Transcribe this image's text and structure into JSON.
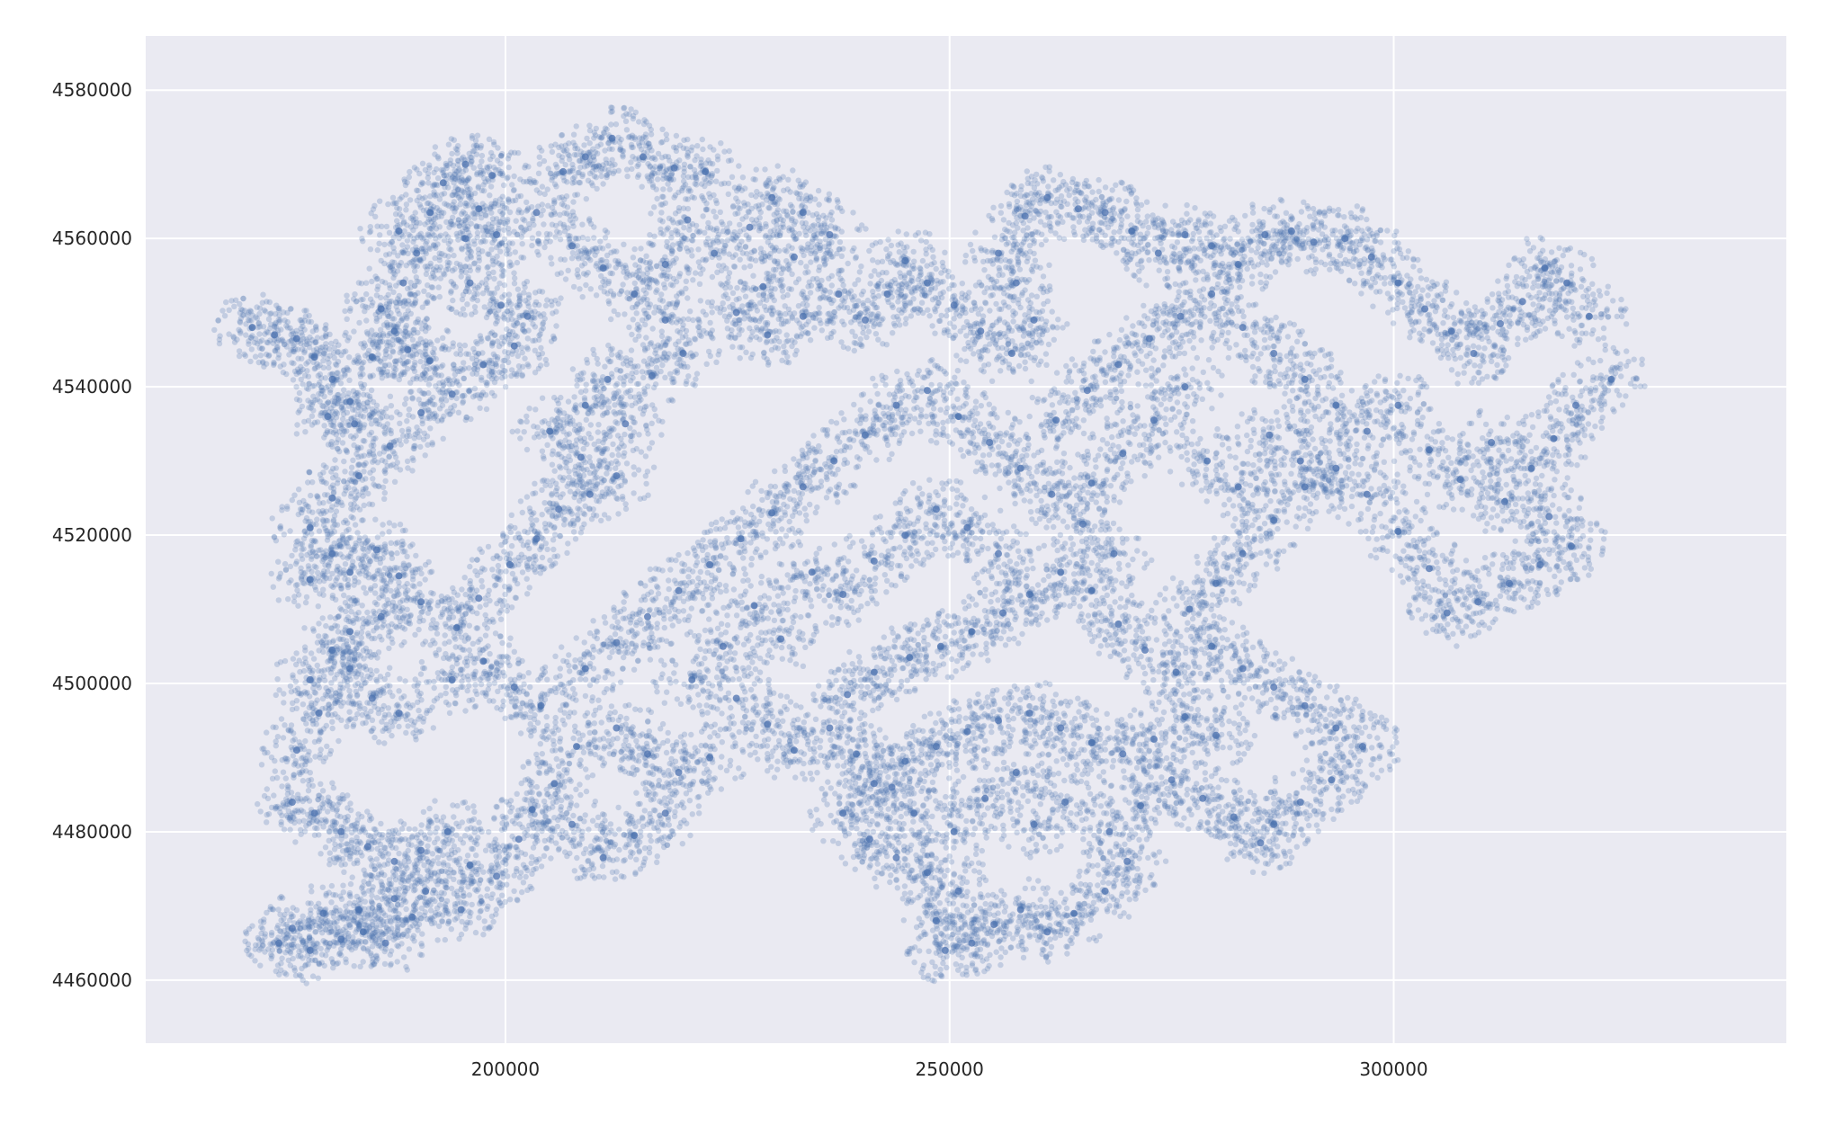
{
  "chart_data": {
    "type": "scatter",
    "title": "",
    "xlabel": "",
    "ylabel": "",
    "xlim": [
      159500,
      344200
    ],
    "ylim": [
      4451500,
      4587300
    ],
    "xticks": [
      200000,
      250000,
      300000
    ],
    "yticks": [
      4460000,
      4480000,
      4500000,
      4520000,
      4540000,
      4560000,
      4580000
    ],
    "x_tick_labels": [
      "200000",
      "250000",
      "300000"
    ],
    "y_tick_labels": [
      "4460000",
      "4480000",
      "4500000",
      "4520000",
      "4540000",
      "4560000",
      "4580000"
    ],
    "grid": true,
    "colors": {
      "background": "#eaeaf2",
      "grid": "#ffffff",
      "marker": "#4c72b0"
    },
    "marker_alpha": 0.25,
    "series": [
      {
        "points": [
          [
            171500,
            4548000
          ],
          [
            174000,
            4547000
          ],
          [
            176500,
            4546500
          ],
          [
            178500,
            4544000
          ],
          [
            180500,
            4541000
          ],
          [
            182500,
            4538000
          ],
          [
            180000,
            4536000
          ],
          [
            183000,
            4535000
          ],
          [
            185000,
            4544000
          ],
          [
            187500,
            4547500
          ],
          [
            189000,
            4545000
          ],
          [
            191500,
            4543500
          ],
          [
            186000,
            4550500
          ],
          [
            188500,
            4554000
          ],
          [
            190000,
            4558000
          ],
          [
            188000,
            4561000
          ],
          [
            191500,
            4563500
          ],
          [
            193000,
            4567500
          ],
          [
            195500,
            4570000
          ],
          [
            198500,
            4568500
          ],
          [
            197000,
            4564000
          ],
          [
            195500,
            4560000
          ],
          [
            199000,
            4560500
          ],
          [
            196000,
            4554000
          ],
          [
            199500,
            4551000
          ],
          [
            202500,
            4549500
          ],
          [
            201000,
            4545500
          ],
          [
            197500,
            4543000
          ],
          [
            194000,
            4539000
          ],
          [
            190500,
            4536500
          ],
          [
            187000,
            4532000
          ],
          [
            183500,
            4528000
          ],
          [
            180500,
            4525000
          ],
          [
            178000,
            4521000
          ],
          [
            180500,
            4517500
          ],
          [
            178000,
            4514000
          ],
          [
            182500,
            4515000
          ],
          [
            185500,
            4518000
          ],
          [
            188000,
            4514500
          ],
          [
            190500,
            4511000
          ],
          [
            186000,
            4509000
          ],
          [
            182500,
            4507000
          ],
          [
            180500,
            4504500
          ],
          [
            178000,
            4500500
          ],
          [
            182500,
            4502000
          ],
          [
            185000,
            4498000
          ],
          [
            188000,
            4496000
          ],
          [
            179000,
            4496000
          ],
          [
            176500,
            4491000
          ],
          [
            176000,
            4484000
          ],
          [
            178500,
            4482500
          ],
          [
            181500,
            4480000
          ],
          [
            184500,
            4478000
          ],
          [
            187500,
            4476000
          ],
          [
            190500,
            4477500
          ],
          [
            193500,
            4480000
          ],
          [
            196000,
            4475500
          ],
          [
            191000,
            4472000
          ],
          [
            187500,
            4471000
          ],
          [
            183500,
            4469500
          ],
          [
            179500,
            4469000
          ],
          [
            176000,
            4467000
          ],
          [
            174500,
            4465000
          ],
          [
            178000,
            4464000
          ],
          [
            181500,
            4465500
          ],
          [
            184000,
            4466500
          ],
          [
            186500,
            4465000
          ],
          [
            189500,
            4468500
          ],
          [
            195000,
            4469500
          ],
          [
            199000,
            4474000
          ],
          [
            201500,
            4479000
          ],
          [
            203000,
            4483000
          ],
          [
            205500,
            4486500
          ],
          [
            208000,
            4491500
          ],
          [
            204000,
            4497000
          ],
          [
            201000,
            4499500
          ],
          [
            197500,
            4503000
          ],
          [
            194000,
            4500500
          ],
          [
            194500,
            4507500
          ],
          [
            197000,
            4511500
          ],
          [
            200500,
            4516000
          ],
          [
            203500,
            4519500
          ],
          [
            206000,
            4523500
          ],
          [
            209500,
            4525500
          ],
          [
            212500,
            4528000
          ],
          [
            208500,
            4530500
          ],
          [
            205000,
            4534000
          ],
          [
            209000,
            4537500
          ],
          [
            211500,
            4541000
          ],
          [
            213500,
            4535000
          ],
          [
            216500,
            4541500
          ],
          [
            220000,
            4544500
          ],
          [
            218000,
            4549000
          ],
          [
            214500,
            4552500
          ],
          [
            211000,
            4556000
          ],
          [
            207500,
            4559000
          ],
          [
            203500,
            4563500
          ],
          [
            206500,
            4569000
          ],
          [
            209000,
            4571000
          ],
          [
            212000,
            4573500
          ],
          [
            215500,
            4571000
          ],
          [
            219000,
            4569500
          ],
          [
            222500,
            4569000
          ],
          [
            220500,
            4562500
          ],
          [
            218000,
            4556500
          ],
          [
            223500,
            4558000
          ],
          [
            227500,
            4561500
          ],
          [
            230000,
            4565500
          ],
          [
            233500,
            4563500
          ],
          [
            236500,
            4560500
          ],
          [
            232500,
            4557500
          ],
          [
            229000,
            4553500
          ],
          [
            226000,
            4550000
          ],
          [
            229500,
            4547000
          ],
          [
            233500,
            4549500
          ],
          [
            237500,
            4552500
          ],
          [
            240500,
            4549000
          ],
          [
            243000,
            4552500
          ],
          [
            245000,
            4557000
          ],
          [
            247500,
            4554000
          ],
          [
            250500,
            4551000
          ],
          [
            253500,
            4547500
          ],
          [
            257000,
            4544500
          ],
          [
            259500,
            4549000
          ],
          [
            257500,
            4554000
          ],
          [
            255500,
            4558000
          ],
          [
            258500,
            4563000
          ],
          [
            261000,
            4565500
          ],
          [
            264500,
            4564000
          ],
          [
            267500,
            4563500
          ],
          [
            270500,
            4561000
          ],
          [
            273500,
            4558000
          ],
          [
            276500,
            4560500
          ],
          [
            279500,
            4559000
          ],
          [
            282500,
            4556500
          ],
          [
            285500,
            4560500
          ],
          [
            288500,
            4561000
          ],
          [
            291000,
            4559500
          ],
          [
            294500,
            4560000
          ],
          [
            297500,
            4557500
          ],
          [
            300500,
            4554000
          ],
          [
            303500,
            4550500
          ],
          [
            306500,
            4547500
          ],
          [
            309000,
            4544500
          ],
          [
            312000,
            4548500
          ],
          [
            314500,
            4551500
          ],
          [
            317000,
            4556000
          ],
          [
            319500,
            4554000
          ],
          [
            322000,
            4549500
          ],
          [
            324500,
            4541000
          ],
          [
            320500,
            4537500
          ],
          [
            318000,
            4533000
          ],
          [
            315500,
            4529000
          ],
          [
            312500,
            4524500
          ],
          [
            317500,
            4522500
          ],
          [
            320000,
            4518500
          ],
          [
            316500,
            4516000
          ],
          [
            313000,
            4513500
          ],
          [
            309500,
            4511000
          ],
          [
            306000,
            4509500
          ],
          [
            304000,
            4515500
          ],
          [
            300500,
            4520500
          ],
          [
            297000,
            4525500
          ],
          [
            293500,
            4529000
          ],
          [
            290000,
            4526500
          ],
          [
            286500,
            4522000
          ],
          [
            283000,
            4517500
          ],
          [
            280000,
            4513500
          ],
          [
            277000,
            4510000
          ],
          [
            279500,
            4505000
          ],
          [
            283000,
            4502000
          ],
          [
            286500,
            4499500
          ],
          [
            290000,
            4497000
          ],
          [
            293500,
            4494000
          ],
          [
            296500,
            4491500
          ],
          [
            293000,
            4487000
          ],
          [
            289500,
            4484000
          ],
          [
            286500,
            4481000
          ],
          [
            285000,
            4478500
          ],
          [
            282000,
            4482000
          ],
          [
            278500,
            4484500
          ],
          [
            275000,
            4487000
          ],
          [
            271500,
            4483500
          ],
          [
            268000,
            4480000
          ],
          [
            270000,
            4476000
          ],
          [
            267500,
            4472000
          ],
          [
            264000,
            4469000
          ],
          [
            261000,
            4466500
          ],
          [
            258000,
            4469500
          ],
          [
            255000,
            4467500
          ],
          [
            252500,
            4465000
          ],
          [
            249500,
            4464000
          ],
          [
            248500,
            4468000
          ],
          [
            251000,
            4472000
          ],
          [
            247500,
            4474500
          ],
          [
            244000,
            4476500
          ],
          [
            241000,
            4479000
          ],
          [
            238000,
            4482500
          ],
          [
            241500,
            4486500
          ],
          [
            245000,
            4489500
          ],
          [
            248500,
            4491500
          ],
          [
            252000,
            4493500
          ],
          [
            255500,
            4495000
          ],
          [
            259000,
            4496000
          ],
          [
            262500,
            4494000
          ],
          [
            266000,
            4492000
          ],
          [
            269500,
            4490500
          ],
          [
            273000,
            4492500
          ],
          [
            276500,
            4495500
          ],
          [
            280000,
            4493000
          ],
          [
            257500,
            4488000
          ],
          [
            254000,
            4484500
          ],
          [
            259500,
            4481000
          ],
          [
            263000,
            4484000
          ],
          [
            250500,
            4480000
          ],
          [
            246000,
            4482500
          ],
          [
            243500,
            4486000
          ],
          [
            239500,
            4490500
          ],
          [
            236500,
            4494000
          ],
          [
            238500,
            4498500
          ],
          [
            241500,
            4501500
          ],
          [
            245500,
            4503500
          ],
          [
            249000,
            4505000
          ],
          [
            252500,
            4507000
          ],
          [
            256000,
            4509500
          ],
          [
            259000,
            4512000
          ],
          [
            262500,
            4515000
          ],
          [
            266000,
            4512500
          ],
          [
            269000,
            4508000
          ],
          [
            272000,
            4504500
          ],
          [
            275500,
            4501500
          ],
          [
            268500,
            4517500
          ],
          [
            265000,
            4521500
          ],
          [
            261500,
            4525500
          ],
          [
            258000,
            4529000
          ],
          [
            254500,
            4532500
          ],
          [
            251000,
            4536000
          ],
          [
            247500,
            4539500
          ],
          [
            244000,
            4537500
          ],
          [
            240500,
            4533500
          ],
          [
            237000,
            4530000
          ],
          [
            233500,
            4526500
          ],
          [
            230000,
            4523000
          ],
          [
            226500,
            4519500
          ],
          [
            223000,
            4516000
          ],
          [
            219500,
            4512500
          ],
          [
            216000,
            4509000
          ],
          [
            212500,
            4505500
          ],
          [
            209000,
            4502000
          ],
          [
            226000,
            4498000
          ],
          [
            229500,
            4494500
          ],
          [
            232500,
            4491000
          ],
          [
            223000,
            4490000
          ],
          [
            219500,
            4488000
          ],
          [
            216000,
            4490500
          ],
          [
            212500,
            4494000
          ],
          [
            218000,
            4482500
          ],
          [
            214500,
            4479500
          ],
          [
            211000,
            4476500
          ],
          [
            207500,
            4481000
          ],
          [
            231000,
            4506000
          ],
          [
            228000,
            4510500
          ],
          [
            224500,
            4505000
          ],
          [
            221000,
            4500500
          ],
          [
            234500,
            4515000
          ],
          [
            238000,
            4512000
          ],
          [
            241500,
            4516500
          ],
          [
            245000,
            4520000
          ],
          [
            248500,
            4523500
          ],
          [
            252000,
            4521000
          ],
          [
            255500,
            4517500
          ],
          [
            262000,
            4535500
          ],
          [
            265500,
            4539500
          ],
          [
            269000,
            4543000
          ],
          [
            272500,
            4546500
          ],
          [
            276000,
            4549500
          ],
          [
            279500,
            4552500
          ],
          [
            283000,
            4548000
          ],
          [
            286500,
            4544500
          ],
          [
            290000,
            4541000
          ],
          [
            293500,
            4537500
          ],
          [
            297000,
            4534000
          ],
          [
            300500,
            4537500
          ],
          [
            304000,
            4531500
          ],
          [
            307500,
            4527500
          ],
          [
            311000,
            4532500
          ],
          [
            276500,
            4540000
          ],
          [
            273000,
            4535500
          ],
          [
            269500,
            4531000
          ],
          [
            266000,
            4527000
          ],
          [
            279000,
            4530000
          ],
          [
            282500,
            4526500
          ],
          [
            286000,
            4533500
          ],
          [
            289500,
            4530000
          ]
        ]
      }
    ]
  }
}
